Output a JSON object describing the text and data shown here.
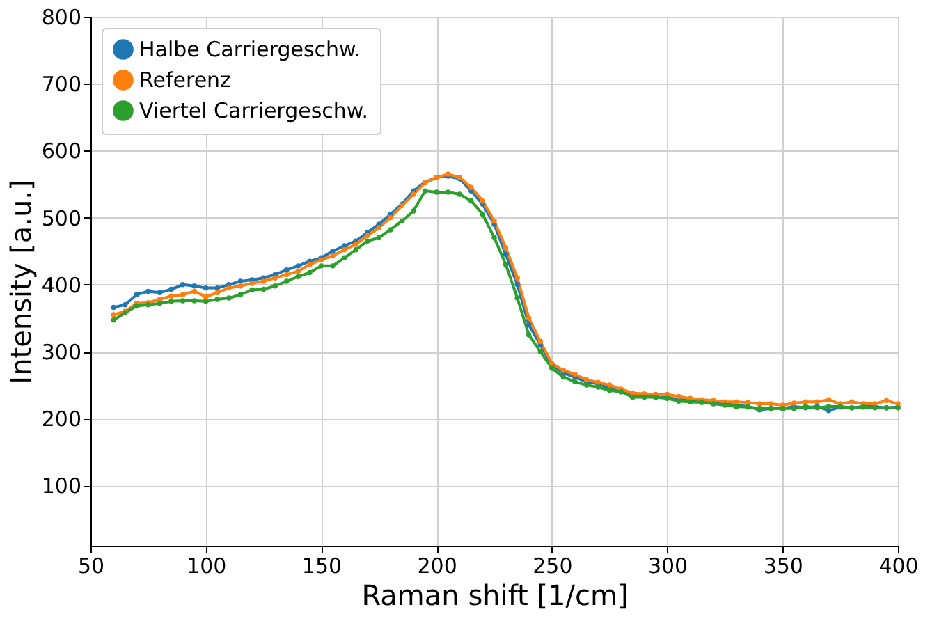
{
  "chart_data": {
    "type": "line",
    "xlabel": "Raman shift [1/cm]",
    "ylabel": "Intensity [a.u.]",
    "x": [
      60,
      65,
      70,
      75,
      80,
      85,
      90,
      95,
      100,
      105,
      110,
      115,
      120,
      125,
      130,
      135,
      140,
      145,
      150,
      155,
      160,
      165,
      170,
      175,
      180,
      185,
      190,
      195,
      200,
      205,
      210,
      215,
      220,
      225,
      230,
      235,
      240,
      245,
      250,
      255,
      260,
      265,
      270,
      275,
      280,
      285,
      290,
      295,
      300,
      305,
      310,
      315,
      320,
      325,
      330,
      335,
      340,
      345,
      350,
      355,
      360,
      365,
      370,
      375,
      380,
      385,
      390,
      395,
      400
    ],
    "series": [
      {
        "name": "Halbe Carriergeschw.",
        "color": "#1f77b4",
        "values": [
          366,
          370,
          385,
          390,
          388,
          393,
          400,
          398,
          395,
          395,
          400,
          405,
          407,
          410,
          415,
          422,
          428,
          435,
          440,
          450,
          458,
          465,
          478,
          490,
          505,
          520,
          540,
          553,
          560,
          562,
          558,
          540,
          520,
          490,
          445,
          400,
          340,
          310,
          280,
          268,
          262,
          255,
          252,
          245,
          240,
          235,
          233,
          232,
          232,
          228,
          228,
          226,
          224,
          222,
          220,
          218,
          213,
          215,
          215,
          218,
          216,
          218,
          212,
          217,
          216,
          218,
          218,
          216,
          217
        ]
      },
      {
        "name": "Referenz",
        "color": "#ff7f0e",
        "values": [
          355,
          360,
          372,
          373,
          378,
          383,
          385,
          390,
          382,
          388,
          395,
          398,
          402,
          405,
          410,
          415,
          420,
          430,
          437,
          443,
          452,
          460,
          473,
          485,
          500,
          518,
          535,
          552,
          560,
          565,
          560,
          545,
          525,
          495,
          455,
          410,
          350,
          315,
          282,
          272,
          266,
          258,
          254,
          250,
          244,
          238,
          237,
          236,
          236,
          233,
          230,
          228,
          227,
          225,
          225,
          224,
          222,
          222,
          220,
          223,
          225,
          225,
          228,
          222,
          225,
          222,
          222,
          227,
          222
        ]
      },
      {
        "name": "Viertel Carriergeschw.",
        "color": "#2ca02c",
        "values": [
          347,
          358,
          368,
          370,
          372,
          375,
          376,
          376,
          375,
          378,
          380,
          385,
          392,
          393,
          398,
          405,
          412,
          418,
          428,
          428,
          440,
          452,
          465,
          470,
          482,
          495,
          510,
          540,
          538,
          538,
          535,
          525,
          505,
          470,
          430,
          380,
          325,
          300,
          275,
          262,
          255,
          250,
          247,
          242,
          240,
          232,
          232,
          232,
          230,
          226,
          225,
          224,
          222,
          220,
          218,
          217,
          215,
          215,
          215,
          215,
          218,
          216,
          218,
          218,
          216,
          217,
          216,
          216,
          216
        ]
      }
    ],
    "xlim": [
      50,
      400
    ],
    "xticks": [
      50,
      100,
      150,
      200,
      250,
      300,
      350,
      400
    ],
    "ylim": [
      10,
      800
    ],
    "yticks": [
      100,
      200,
      300,
      400,
      500,
      600,
      700,
      800
    ],
    "grid": true,
    "legend": "top left",
    "marker": "circle",
    "line_style": "solid"
  }
}
